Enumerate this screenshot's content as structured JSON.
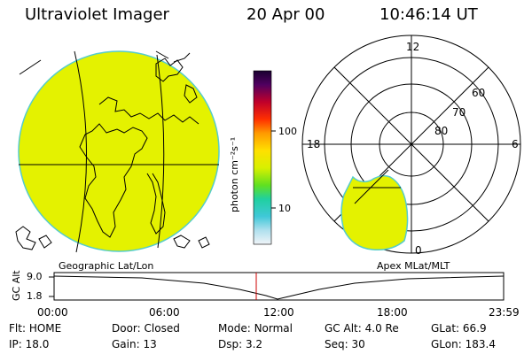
{
  "header": {
    "instrument": "Ultraviolet Imager",
    "date": "20 Apr 00",
    "time": "10:46:14 UT"
  },
  "colorbar": {
    "unit_label": "photon cm⁻²s⁻¹",
    "tick_labels": [
      "100",
      "10"
    ]
  },
  "geo_panel": {
    "label": "Geographic Lat/Lon",
    "fill_color": "#e4f200"
  },
  "polar_panel": {
    "label": "Apex MLat/MLT",
    "mlt_labels": {
      "top": "12",
      "left": "18",
      "right": "6",
      "bottom": "0"
    },
    "lat_labels": [
      "60",
      "70",
      "80"
    ],
    "fill_color": "#e4f200"
  },
  "altitude_plot": {
    "ylabel": "GC Alt",
    "y_ticks": [
      "9.0",
      "1.8"
    ],
    "x_ticks": [
      "00:00",
      "06:00",
      "12:00",
      "18:00",
      "23:59"
    ],
    "current_time_marker_color": "#cc0000"
  },
  "info": {
    "row1": [
      {
        "key": "Flt:",
        "value": "HOME"
      },
      {
        "key": "Door:",
        "value": "Closed"
      },
      {
        "key": "Mode:",
        "value": "Normal"
      },
      {
        "key": "GC Alt:",
        "value": "4.0 Re"
      },
      {
        "key": "GLat:",
        "value": "66.9"
      }
    ],
    "row2": [
      {
        "key": "IP:",
        "value": "18.0"
      },
      {
        "key": "Gain:",
        "value": "13"
      },
      {
        "key": "Dsp:",
        "value": "3.2"
      },
      {
        "key": "Seq:",
        "value": "30"
      },
      {
        "key": "GLon:",
        "value": "183.4"
      }
    ]
  }
}
